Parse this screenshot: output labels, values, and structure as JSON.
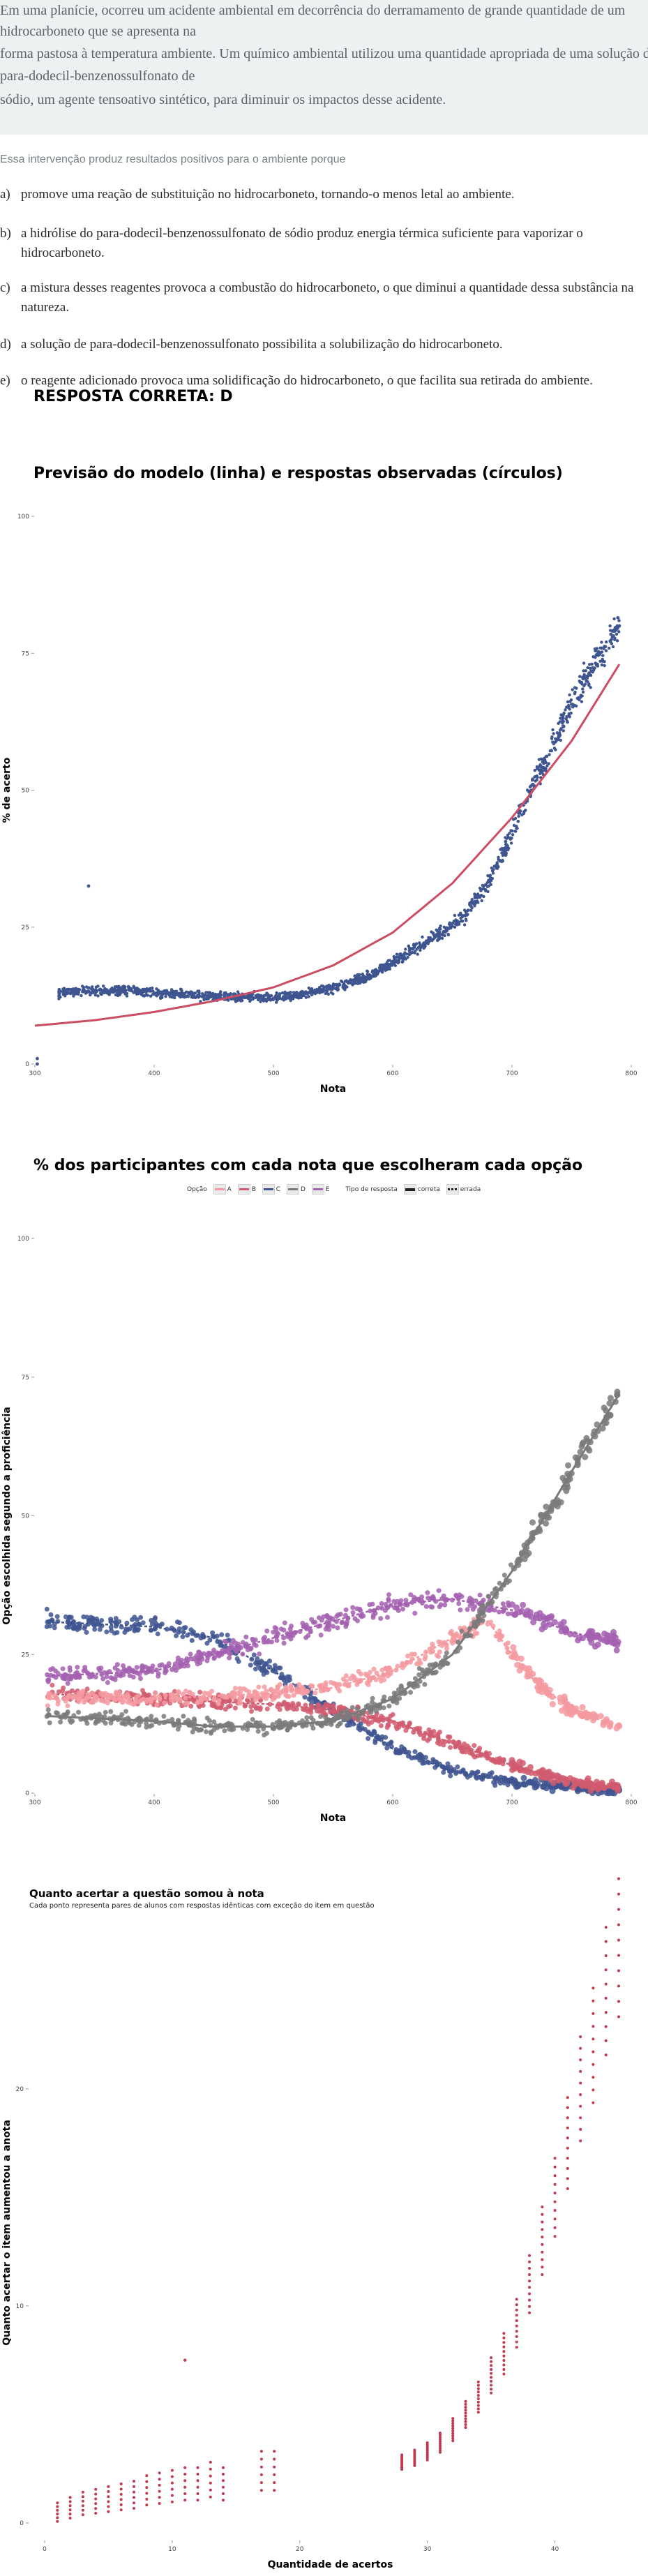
{
  "question": {
    "text_lines": [
      "Em uma planície, ocorreu um acidente ambiental em decorrência do derramamento de grande quantidade de um",
      "hidrocarboneto que se apresenta na",
      "forma pastosa à temperatura ambiente. Um químico ambiental utilizou uma quantidade apropriada de uma solução de",
      "para-dodecil-benzenossulfonato de",
      "sódio, um agente tensoativo sintético, para diminuir os impactos desse acidente."
    ],
    "prompt": "Essa intervenção produz resultados positivos para o ambiente porque",
    "options": [
      {
        "letter": "a)",
        "lines": [
          "promove uma reação de substituição no hidrocarboneto, tornando-o menos letal ao ambiente."
        ]
      },
      {
        "letter": "b)",
        "lines": [
          "a hidrólise do para-dodecil-benzenossulfonato de sódio produz energia térmica suficiente para vaporizar o",
          "hidrocarboneto."
        ]
      },
      {
        "letter": "c)",
        "lines": [
          "a mistura desses reagentes provoca a combustão do hidrocarboneto, o que diminui a quantidade dessa substância na",
          "natureza."
        ]
      },
      {
        "letter": "d)",
        "lines": [
          "a solução de para-dodecil-benzenossulfonato possibilita a solubilização do hidrocarboneto."
        ]
      },
      {
        "letter": "e)",
        "lines": [
          "o reagente adicionado provoca uma solidificação do hidrocarboneto, o que facilita sua retirada do ambiente."
        ]
      }
    ],
    "answer": "RESPOSTA CORRETA: D"
  },
  "chart_data": [
    {
      "type": "scatter",
      "title": "Previsão do modelo (linha) e respostas observadas (círculos)",
      "xlabel": "Nota",
      "ylabel": "% de acerto",
      "xlim": [
        300,
        800
      ],
      "ylim": [
        0,
        100
      ],
      "xticks": [
        "300",
        "400",
        "500",
        "600",
        "700",
        "800"
      ],
      "yticks": [
        "0",
        "25",
        "50",
        "75",
        "100"
      ],
      "colors": {
        "points": "#3f5590",
        "line": "#cc4d63"
      },
      "series": [
        {
          "values_by_x": [
            [
              300,
              4
            ],
            [
              320,
              13
            ],
            [
              340,
              13.5
            ],
            [
              360,
              13.3
            ],
            [
              380,
              13.5
            ],
            [
              400,
              13
            ],
            [
              420,
              12.8
            ],
            [
              440,
              12.5
            ],
            [
              460,
              12.3
            ],
            [
              480,
              12.2
            ],
            [
              500,
              12.1
            ],
            [
              520,
              12.5
            ],
            [
              540,
              13.5
            ],
            [
              560,
              14.5
            ],
            [
              580,
              16
            ],
            [
              600,
              18.5
            ],
            [
              620,
              21
            ],
            [
              640,
              24
            ],
            [
              660,
              27
            ],
            [
              680,
              33
            ],
            [
              700,
              42
            ],
            [
              720,
              52
            ],
            [
              740,
              61
            ],
            [
              760,
              70
            ],
            [
              790,
              80
            ]
          ],
          "outliers": [
            [
              302,
              1
            ],
            [
              302,
              0
            ],
            [
              345,
              32.5
            ],
            [
              790,
              80
            ]
          ]
        },
        {
          "model": [
            [
              300,
              7
            ],
            [
              350,
              8
            ],
            [
              400,
              9.5
            ],
            [
              450,
              11.5
            ],
            [
              500,
              14
            ],
            [
              550,
              18
            ],
            [
              600,
              24
            ],
            [
              650,
              33
            ],
            [
              700,
              45
            ],
            [
              750,
              59
            ],
            [
              790,
              73
            ]
          ]
        }
      ]
    },
    {
      "type": "scatter",
      "title": "% dos participantes com cada nota que escolheram cada opção",
      "xlabel": "Nota",
      "ylabel": "Opção escolhida segundo a proficiência",
      "xlim": [
        300,
        800
      ],
      "ylim": [
        0,
        100
      ],
      "xticks": [
        "300",
        "400",
        "500",
        "600",
        "700",
        "800"
      ],
      "yticks": [
        "0",
        "25",
        "50",
        "75",
        "100"
      ],
      "legend": {
        "option_title": "Opção",
        "options": [
          "A",
          "B",
          "C",
          "D",
          "E"
        ],
        "type_title": "Tipo de resposta",
        "types": [
          "correta",
          "errada"
        ]
      },
      "colors": {
        "A": "#f59aa0",
        "B": "#d15a6e",
        "C": "#3f5590",
        "D": "#7a7a7a",
        "E": "#a460b0"
      },
      "series": [
        {
          "name": "A",
          "values_by_x": [
            [
              300,
              17
            ],
            [
              400,
              17
            ],
            [
              500,
              18
            ],
            [
              550,
              19
            ],
            [
              600,
              22
            ],
            [
              650,
              28
            ],
            [
              680,
              31
            ],
            [
              700,
              25
            ],
            [
              720,
              20
            ],
            [
              750,
              15
            ],
            [
              790,
              12
            ]
          ]
        },
        {
          "name": "B",
          "values_by_x": [
            [
              300,
              18
            ],
            [
              400,
              17
            ],
            [
              500,
              16
            ],
            [
              550,
              15
            ],
            [
              600,
              13
            ],
            [
              650,
              9
            ],
            [
              700,
              5
            ],
            [
              750,
              2
            ],
            [
              790,
              1
            ]
          ]
        },
        {
          "name": "C",
          "values_by_x": [
            [
              300,
              31
            ],
            [
              400,
              30
            ],
            [
              450,
              28
            ],
            [
              500,
              22
            ],
            [
              550,
              15
            ],
            [
              600,
              8
            ],
            [
              650,
              4
            ],
            [
              700,
              2
            ],
            [
              750,
              1
            ],
            [
              790,
              0.5
            ]
          ]
        },
        {
          "name": "D",
          "values_by_x": [
            [
              300,
              14
            ],
            [
              400,
              13
            ],
            [
              450,
              12
            ],
            [
              500,
              12
            ],
            [
              550,
              13
            ],
            [
              600,
              17
            ],
            [
              650,
              25
            ],
            [
              700,
              40
            ],
            [
              750,
              58
            ],
            [
              790,
              72
            ]
          ]
        },
        {
          "name": "E",
          "values_by_x": [
            [
              300,
              21
            ],
            [
              400,
              22
            ],
            [
              450,
              25
            ],
            [
              500,
              28
            ],
            [
              550,
              31
            ],
            [
              600,
              34
            ],
            [
              650,
              35
            ],
            [
              700,
              33
            ],
            [
              750,
              29
            ],
            [
              790,
              27
            ]
          ]
        }
      ]
    },
    {
      "type": "scatter",
      "title": "Quanto acertar a questão somou à nota",
      "subtitle": "Cada ponto representa pares de alunos com respostas idênticas com exceção do item em questão",
      "xlabel": "Quantidade de acertos",
      "ylabel": "Quanto acertar o item aumentou a anota",
      "xlim": [
        0,
        45
      ],
      "ylim": [
        0,
        27
      ],
      "xticks": [
        "0",
        "10",
        "20",
        "30",
        "40"
      ],
      "yticks": [
        "0",
        "10",
        "20"
      ],
      "colors": {
        "points": "#c0394f"
      },
      "series": [
        {
          "values_by_x": [
            [
              1,
              0.5
            ],
            [
              2,
              0.7
            ],
            [
              3,
              0.9
            ],
            [
              4,
              1.0
            ],
            [
              5,
              1.1
            ],
            [
              6,
              1.2
            ],
            [
              7,
              1.3
            ],
            [
              8,
              1.5
            ],
            [
              9,
              1.6
            ],
            [
              10,
              1.7
            ],
            [
              11,
              1.8
            ],
            [
              12,
              1.8
            ],
            [
              13,
              2.0
            ],
            [
              14,
              1.8
            ],
            [
              17,
              2.4
            ],
            [
              18,
              2.4
            ],
            [
              28,
              2.8
            ],
            [
              29,
              3.0
            ],
            [
              30,
              3.3
            ],
            [
              31,
              3.7
            ],
            [
              32,
              4.3
            ],
            [
              33,
              5.0
            ],
            [
              34,
              5.8
            ],
            [
              35,
              6.8
            ],
            [
              36,
              7.8
            ],
            [
              37,
              9.2
            ],
            [
              38,
              11.0
            ],
            [
              39,
              13.0
            ],
            [
              40,
              15.0
            ],
            [
              41,
              17.5
            ],
            [
              42,
              20.0
            ],
            [
              43,
              22.0
            ],
            [
              44,
              24.5
            ],
            [
              45,
              26.5
            ]
          ],
          "outliers": [
            [
              11,
              7.5
            ]
          ]
        }
      ]
    }
  ]
}
